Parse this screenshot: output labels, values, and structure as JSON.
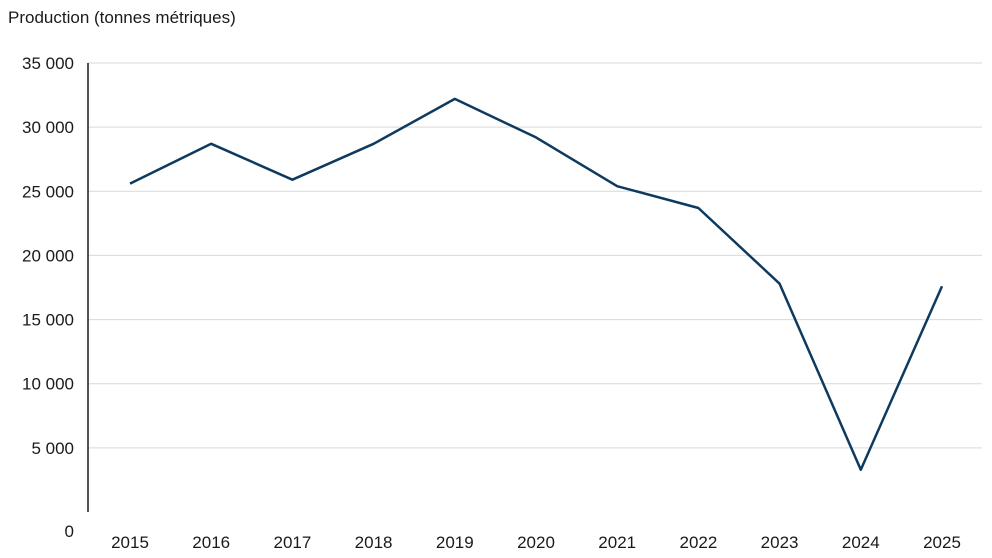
{
  "chart_data": {
    "type": "line",
    "title": "",
    "xlabel": "",
    "ylabel": "Production (tonnes métriques)",
    "categories": [
      "2015",
      "2016",
      "2017",
      "2018",
      "2019",
      "2020",
      "2021",
      "2022",
      "2023",
      "2024",
      "2025"
    ],
    "series": [
      {
        "values": [
          25600,
          28700,
          25900,
          28700,
          32200,
          29200,
          25400,
          23700,
          17800,
          3300,
          17600
        ]
      }
    ],
    "ylim": [
      0,
      35000
    ],
    "yticks": [
      0,
      5000,
      10000,
      15000,
      20000,
      25000,
      30000,
      35000
    ],
    "ytick_labels": [
      "0",
      "5 000",
      "10 000",
      "15 000",
      "20 000",
      "25 000",
      "30 000",
      "35 000"
    ],
    "grid": true,
    "legend": "none",
    "colors": {
      "line": "#0e3a5f",
      "grid": "#d9d9d9",
      "axis": "#1a1a1a"
    }
  }
}
